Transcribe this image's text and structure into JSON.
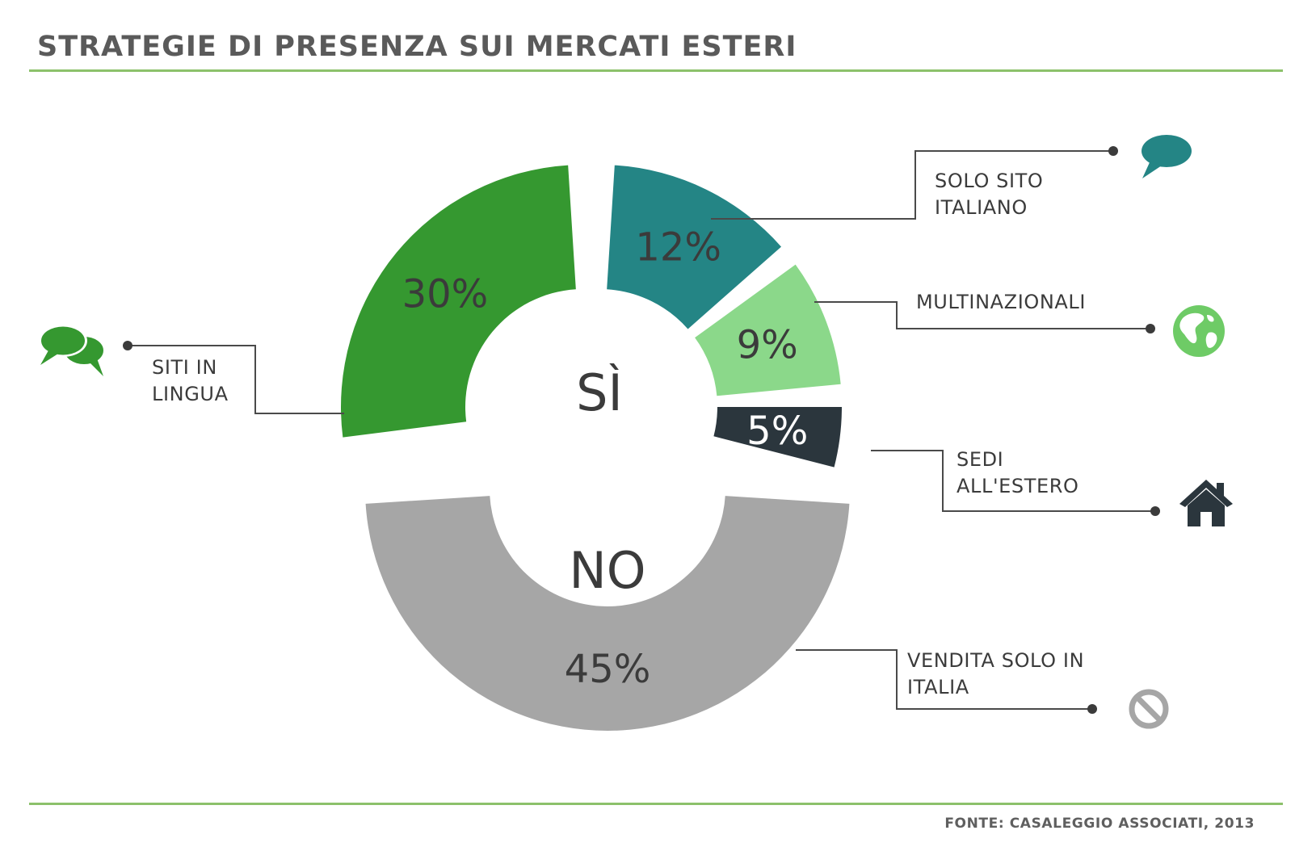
{
  "title": "STRATEGIE DI PRESENZA SUI MERCATI ESTERI",
  "source": "FONTE: CASALEGGIO ASSOCIATI, 2013",
  "colors": {
    "rule": "#8cc16b",
    "siti_in_lingua": "#359830",
    "solo_sito_italiano": "#248585",
    "multinazionali": "#8bd88a",
    "sedi_all_estero": "#2b363d",
    "vendita_solo_in_italia": "#a6a6a6"
  },
  "chart_data": {
    "type": "pie",
    "style": "donut",
    "groups": [
      {
        "name": "SÌ",
        "categories": [
          "SITI IN LINGUA",
          "SOLO SITO ITALIANO",
          "MULTINAZIONALI",
          "SEDI ALL'ESTERO"
        ]
      },
      {
        "name": "NO",
        "categories": [
          "VENDITA SOLO IN ITALIA"
        ]
      }
    ],
    "slices": [
      {
        "label_lines": [
          "SITI IN",
          "LINGUA"
        ],
        "value": 30,
        "value_label": "30%",
        "color": "#359830",
        "icon": "speech-bubbles-icon"
      },
      {
        "label_lines": [
          "SOLO SITO",
          "ITALIANO"
        ],
        "value": 12,
        "value_label": "12%",
        "color": "#248585",
        "icon": "speech-bubble-icon"
      },
      {
        "label_lines": [
          "MULTINAZIONALI"
        ],
        "value": 9,
        "value_label": "9%",
        "color": "#8bd88a",
        "icon": "globe-icon"
      },
      {
        "label_lines": [
          "SEDI",
          "ALL'ESTERO"
        ],
        "value": 5,
        "value_label": "5%",
        "color": "#2b363d",
        "icon": "house-icon"
      },
      {
        "label_lines": [
          "VENDITA SOLO IN",
          "ITALIA"
        ],
        "value": 45,
        "value_label": "45%",
        "color": "#a6a6a6",
        "icon": "no-entry-icon"
      }
    ]
  }
}
